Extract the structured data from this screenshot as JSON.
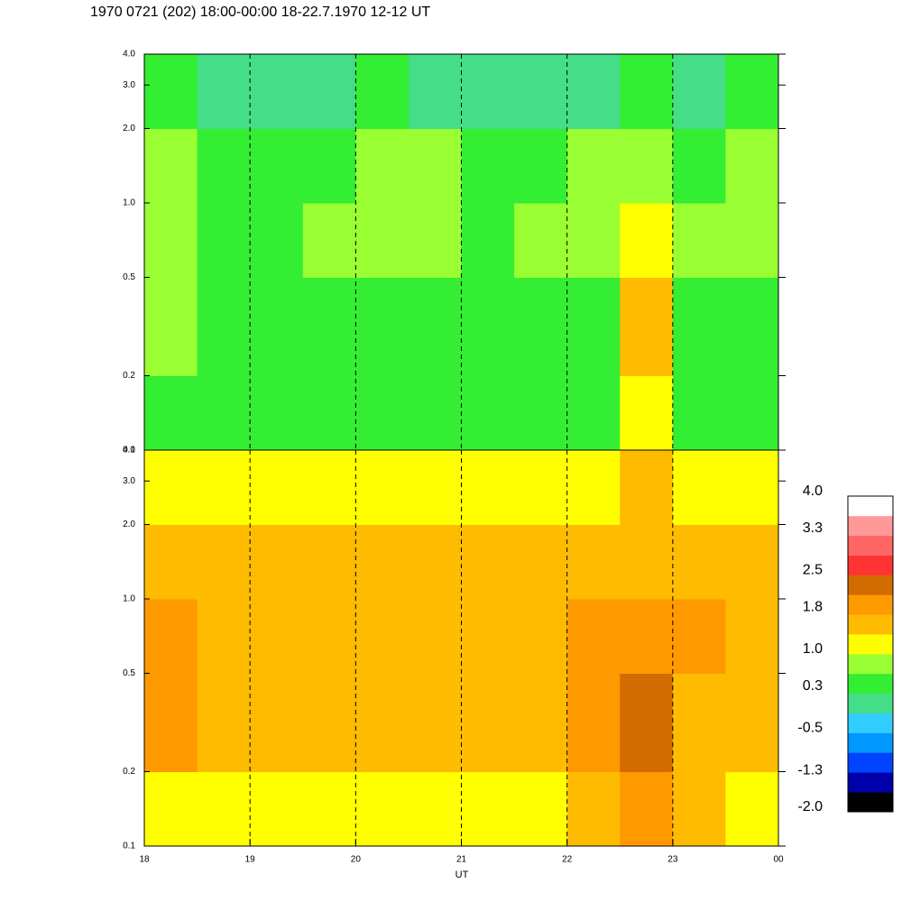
{
  "chart_data": {
    "type": "heatmap",
    "title": "1970 0721 (202) 18:00-00:00 18-22.7.1970  12-12 UT",
    "xlabel": "UT",
    "xlim": [
      18,
      24
    ],
    "xticks": [
      18,
      19,
      20,
      21,
      22,
      23,
      {
        "value": 24,
        "label": "00"
      }
    ],
    "ylim": [
      0.1,
      4
    ],
    "log_y": true,
    "yticks": [
      0.1,
      0.2,
      0.5,
      {
        "value": 1,
        "label": "1.0"
      },
      {
        "value": 2,
        "label": "2.0"
      },
      {
        "value": 3,
        "label": "3.0"
      },
      {
        "value": 4,
        "label": "4.0"
      }
    ],
    "x_edges": [
      18,
      18.5,
      19,
      19.5,
      20,
      20.5,
      21,
      21.5,
      22,
      22.5,
      23,
      23.5,
      24
    ],
    "y_edges": [
      0.1,
      0.2,
      0.5,
      1,
      2,
      4
    ],
    "panels": [
      {
        "values": [
          [
            0.4,
            0.3,
            0.4,
            0.4,
            0.3,
            0.4,
            0.3,
            0.4,
            0.4,
            1.1,
            0.5,
            0.3
          ],
          [
            0.8,
            0.4,
            0.4,
            0.5,
            0.5,
            0.5,
            0.4,
            0.5,
            0.6,
            1.4,
            0.6,
            0.4
          ],
          [
            0.9,
            0.6,
            0.5,
            0.7,
            0.7,
            0.7,
            0.6,
            0.7,
            0.9,
            1.2,
            0.8,
            0.7
          ],
          [
            0.7,
            0.6,
            0.5,
            0.6,
            0.7,
            0.7,
            0.6,
            0.6,
            0.7,
            0.8,
            0.6,
            0.7
          ],
          [
            0.3,
            0.2,
            0.1,
            0.2,
            0.3,
            0.2,
            0.2,
            0.1,
            0.2,
            0.3,
            0.2,
            0.3
          ]
        ]
      },
      {
        "values": [
          [
            1.3,
            1.2,
            1.1,
            1.2,
            1.2,
            1.3,
            1.2,
            1.2,
            1.6,
            1.9,
            1.4,
            1.2
          ],
          [
            1.9,
            1.5,
            1.4,
            1.5,
            1.5,
            1.6,
            1.5,
            1.5,
            1.8,
            2.2,
            1.7,
            1.5
          ],
          [
            2.0,
            1.6,
            1.5,
            1.6,
            1.6,
            1.7,
            1.6,
            1.6,
            1.9,
            2.0,
            1.8,
            1.6
          ],
          [
            1.6,
            1.5,
            1.4,
            1.5,
            1.5,
            1.6,
            1.5,
            1.5,
            1.6,
            1.7,
            1.6,
            1.5
          ],
          [
            1.3,
            1.3,
            1.2,
            1.3,
            1.3,
            1.3,
            1.2,
            1.3,
            1.3,
            1.4,
            1.3,
            1.3
          ]
        ]
      }
    ],
    "colorbar": {
      "lim": [
        -2,
        4
      ],
      "colors": [
        "#000000",
        "#0000aa",
        "#0044ff",
        "#0099ff",
        "#33ccff",
        "#44dd88",
        "#33ee33",
        "#99ff33",
        "#ffff00",
        "#ffbb00",
        "#ff9900",
        "#d26c00",
        "#ff3333",
        "#ff6666",
        "#ff9999",
        "#ffffff"
      ],
      "ticks": [
        {
          "value": 4,
          "label": "4.0"
        },
        3.3,
        2.5,
        1.8,
        {
          "value": 1,
          "label": "1.0"
        },
        0.3,
        -0.5,
        -1.3,
        {
          "value": -2,
          "label": "-2.0"
        }
      ]
    }
  }
}
